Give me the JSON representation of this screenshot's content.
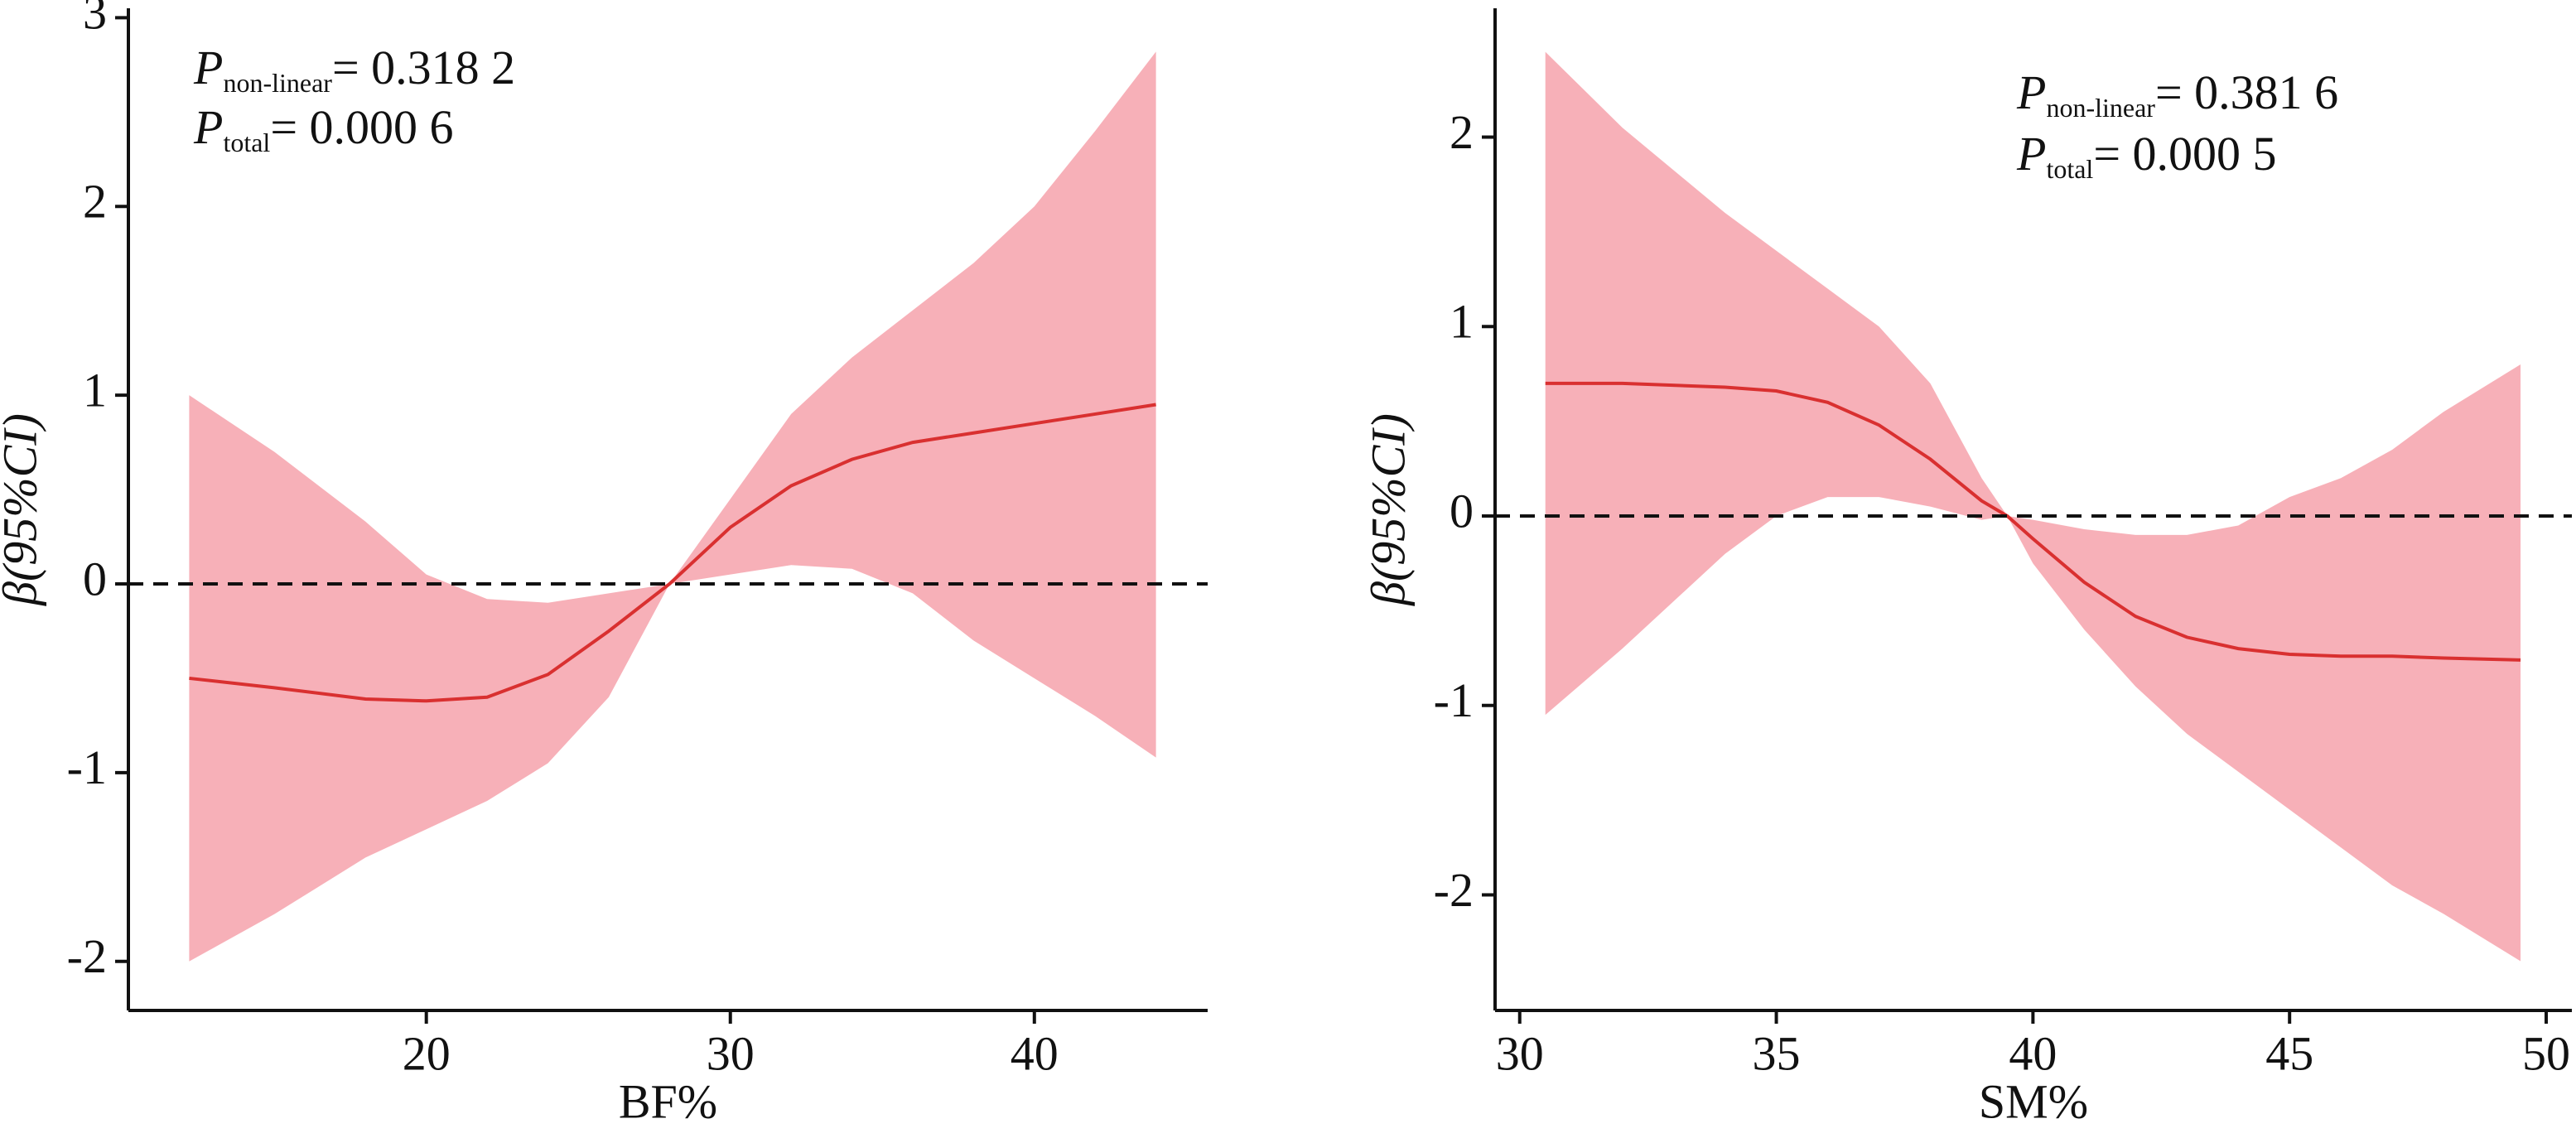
{
  "chart_data": [
    {
      "type": "line",
      "x_label": "BF%",
      "y_label": "β(95%CI)",
      "xlim": [
        10.2,
        45.7
      ],
      "xticks": [
        20,
        30,
        40
      ],
      "ylim": [
        -2.26,
        3.05
      ],
      "yticks": [
        -2,
        -1,
        0,
        1,
        2,
        3
      ],
      "reference_y": 0,
      "annotations": [
        {
          "symbol": "P",
          "subscript": "non-linear",
          "text": "= 0.318 2"
        },
        {
          "symbol": "P",
          "subscript": "total",
          "text": "= 0.000 6"
        }
      ],
      "x": [
        12.2,
        15,
        18,
        20,
        22,
        24,
        26,
        28,
        30,
        32,
        34,
        36,
        38,
        40,
        42,
        44
      ],
      "series": [
        {
          "color": "#d93030",
          "band_color": "#f7b0b8",
          "values": [
            -0.5,
            -0.55,
            -0.61,
            -0.62,
            -0.6,
            -0.48,
            -0.25,
            0,
            0.3,
            0.52,
            0.66,
            0.75,
            0.8,
            0.85,
            0.9,
            0.95
          ],
          "upper": [
            1.0,
            0.7,
            0.33,
            0.05,
            -0.08,
            -0.1,
            -0.05,
            0,
            0.45,
            0.9,
            1.2,
            1.45,
            1.7,
            2.0,
            2.4,
            2.82
          ],
          "lower": [
            -2.0,
            -1.75,
            -1.45,
            -1.3,
            -1.15,
            -0.95,
            -0.6,
            0,
            0.05,
            0.1,
            0.08,
            -0.05,
            -0.3,
            -0.5,
            -0.7,
            -0.92
          ]
        }
      ]
    },
    {
      "type": "line",
      "x_label": "SM%",
      "y_label": "β(95%CI)",
      "xlim": [
        29.52,
        50.5
      ],
      "xticks": [
        30,
        35,
        40,
        45,
        50
      ],
      "ylim": [
        -2.61,
        2.68
      ],
      "yticks": [
        -2,
        -1,
        0,
        1,
        2
      ],
      "reference_y": 0,
      "annotations": [
        {
          "symbol": "P",
          "subscript": "non-linear",
          "text": "= 0.381 6"
        },
        {
          "symbol": "P",
          "subscript": "total",
          "text": "= 0.000 5"
        }
      ],
      "x": [
        30.5,
        32,
        34,
        35,
        36,
        37,
        38,
        39,
        39.5,
        40,
        41,
        42,
        43,
        44,
        45,
        46,
        47,
        48,
        49.5
      ],
      "series": [
        {
          "color": "#d93030",
          "band_color": "#f7b0b8",
          "values": [
            0.7,
            0.7,
            0.68,
            0.66,
            0.6,
            0.48,
            0.3,
            0.08,
            0,
            -0.12,
            -0.35,
            -0.53,
            -0.64,
            -0.7,
            -0.73,
            -0.74,
            -0.74,
            -0.75,
            -0.76
          ],
          "upper": [
            2.45,
            2.05,
            1.6,
            1.4,
            1.2,
            1.0,
            0.7,
            0.2,
            0,
            -0.02,
            -0.07,
            -0.1,
            -0.1,
            -0.05,
            0.1,
            0.2,
            0.35,
            0.55,
            0.8
          ],
          "lower": [
            -1.05,
            -0.7,
            -0.2,
            0,
            0.1,
            0.1,
            0.05,
            -0.02,
            0,
            -0.25,
            -0.6,
            -0.9,
            -1.15,
            -1.35,
            -1.55,
            -1.75,
            -1.95,
            -2.1,
            -2.35
          ]
        }
      ]
    }
  ]
}
